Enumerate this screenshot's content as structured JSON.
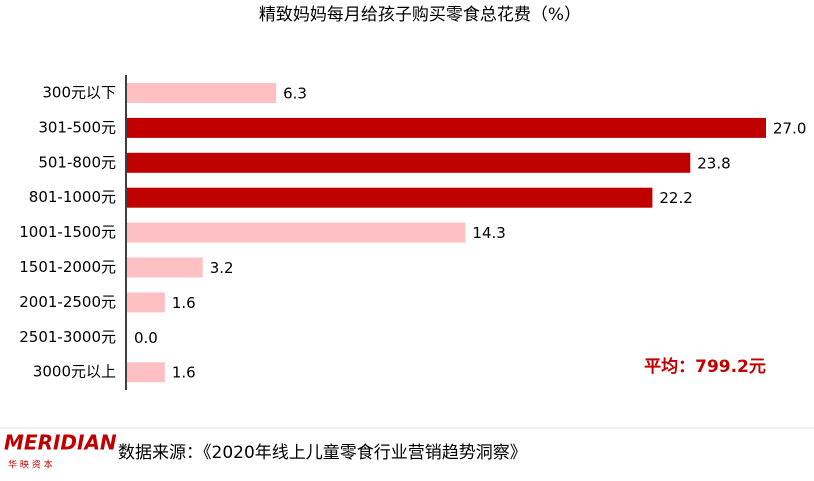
{
  "chart_data": {
    "type": "bar",
    "orientation": "horizontal",
    "title": "精致妈妈每月给孩子购买零食总花费（%）",
    "categories": [
      "300元以下",
      "301-500元",
      "501-800元",
      "801-1000元",
      "1001-1500元",
      "1501-2000元",
      "2001-2500元",
      "2501-3000元",
      "3000元以上"
    ],
    "values": [
      6.3,
      27.0,
      23.8,
      22.2,
      14.3,
      3.2,
      1.6,
      0.0,
      1.6
    ],
    "value_labels": [
      "6.3",
      "27.0",
      "23.8",
      "22.2",
      "14.3",
      "3.2",
      "1.6",
      "0.0",
      "1.6"
    ],
    "colors": [
      "#ffc0c4",
      "#c00000",
      "#c00000",
      "#c00000",
      "#ffc0c4",
      "#ffc0c4",
      "#ffc0c4",
      "#ffc0c4",
      "#ffc0c4"
    ],
    "annotation": "平均：799.2元"
  },
  "footer": {
    "logo": "MERIDIAN",
    "logo_sub": "华 映 资 本",
    "source": "数据来源：《2020年线上儿童零食行业营销趋势洞察》"
  }
}
